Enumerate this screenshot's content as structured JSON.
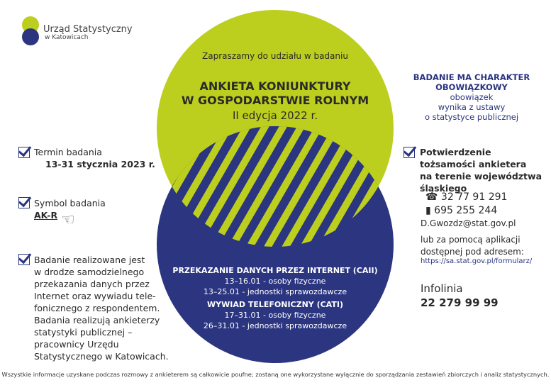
{
  "logo": {
    "line1": "Urząd Statystyczny",
    "line2": "w Katowicach"
  },
  "colors": {
    "green": "#bdcf1e",
    "navy": "#2b3580"
  },
  "hero": {
    "invite": "Zapraszamy do udziału w badaniu",
    "title1": "ANKIETA KONIUNKTURY",
    "title2": "W GOSPODARSTWIE ROLNYM",
    "edition": "II edycja 2022 r."
  },
  "schedule": {
    "caii_title": "PRZEKAZANIE DANYCH PRZEZ INTERNET (CAII)",
    "caii_1": "13–16.01 - osoby fizyczne",
    "caii_2": "13–25.01 - jednostki sprawozdawcze",
    "cati_title": "WYWIAD TELEFONICZNY (CATI)",
    "cati_1": "17–31.01 - osoby fizyczne",
    "cati_2": "26–31.01 - jednostki sprawozdawcze"
  },
  "left": {
    "term_label": "Termin badania",
    "term_value": "13-31 stycznia 2023 r.",
    "symbol_label": "Symbol badania",
    "symbol_value": "AK-R",
    "desc": [
      "Badanie realizowane jest",
      "w drodze samodzielnego",
      "przekazania danych przez",
      "Internet oraz wywiadu tele-",
      "fonicznego z respondentem.",
      "Badania realizują ankieterzy",
      "statystyki publicznej –",
      "pracownicy Urzędu",
      "Statystycznego w Katowicach."
    ]
  },
  "right": {
    "mandatory1": "BADANIE MA CHARAKTER",
    "mandatory2": "OBOWIĄZKOWY",
    "law": [
      "obowiązek",
      "wynika z ustawy",
      "o statystyce publicznej"
    ],
    "confirm": [
      "Potwierdzenie",
      "tożsamości ankietera",
      "na terenie województwa",
      "śląskiego"
    ],
    "phone": "32 77 91 291",
    "mobile": "695 255 244",
    "email": "D.Gwozdz@stat.gov.pl",
    "app": [
      "lub za pomocą aplikacji",
      "dostępnej pod adresem:"
    ],
    "url": "https://sa.stat.gov.pl/formularz/",
    "infoline_label": "Infolinia",
    "infoline": "22 279 99 99"
  },
  "footer": "Wszystkie informacje uzyskane podczas rozmowy z ankieterem są całkowicie poufne; zostaną one wykorzystane wyłącznie do sporządzania zestawień zbiorczych i analiz statystycznych."
}
